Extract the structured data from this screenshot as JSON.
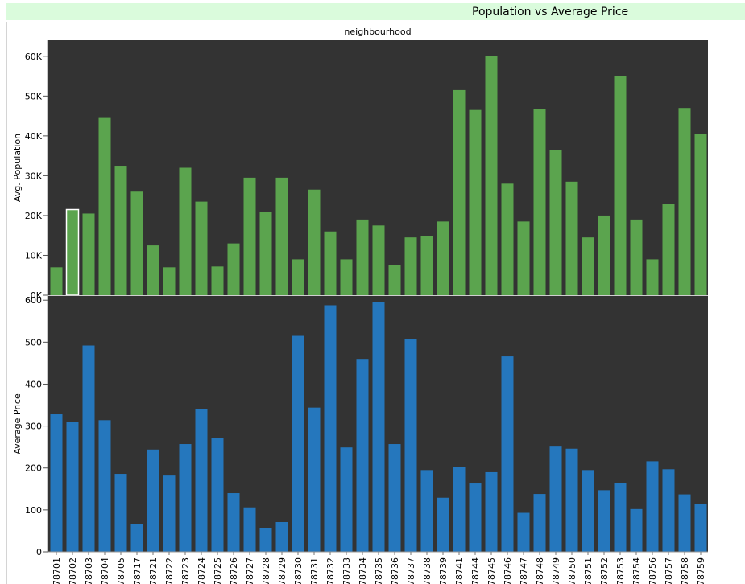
{
  "title": "Population vs Average Price",
  "column_header": "neighbourhood",
  "colors": {
    "title_bg": "#dafbdc",
    "plot_bg": "#333333",
    "population_bar": "#5ba44e",
    "price_bar": "#2577bd",
    "selected_outline": "#ffffff"
  },
  "chart_data": [
    {
      "type": "bar",
      "categories": [
        "78701",
        "78702",
        "78703",
        "78704",
        "78705",
        "78717",
        "78721",
        "78722",
        "78723",
        "78724",
        "78725",
        "78726",
        "78727",
        "78728",
        "78729",
        "78730",
        "78731",
        "78732",
        "78733",
        "78734",
        "78735",
        "78736",
        "78737",
        "78738",
        "78739",
        "78741",
        "78744",
        "78745",
        "78746",
        "78747",
        "78748",
        "78749",
        "78750",
        "78751",
        "78752",
        "78753",
        "78754",
        "78756",
        "78757",
        "78758",
        "78759"
      ],
      "values": [
        7000,
        21500,
        20500,
        44500,
        32500,
        26000,
        12500,
        7000,
        32000,
        23500,
        7200,
        13000,
        29500,
        21000,
        29500,
        9000,
        26500,
        16000,
        9000,
        19000,
        17500,
        7500,
        14500,
        14800,
        18500,
        51500,
        46500,
        60000,
        28000,
        18500,
        46800,
        36500,
        28500,
        14500,
        20000,
        55000,
        19000,
        9000,
        23000,
        47000,
        40500
      ],
      "ylabel": "Avg. Population",
      "ylim": [
        0,
        64000
      ],
      "yticks": [
        {
          "value": 0,
          "label": "0K"
        },
        {
          "value": 10000,
          "label": "10K"
        },
        {
          "value": 20000,
          "label": "20K"
        },
        {
          "value": 30000,
          "label": "30K"
        },
        {
          "value": 40000,
          "label": "40K"
        },
        {
          "value": 50000,
          "label": "50K"
        },
        {
          "value": 60000,
          "label": "60K"
        }
      ],
      "highlighted": "78702",
      "grid": false
    },
    {
      "type": "bar",
      "categories": [
        "78701",
        "78702",
        "78703",
        "78704",
        "78705",
        "78717",
        "78721",
        "78722",
        "78723",
        "78724",
        "78725",
        "78726",
        "78727",
        "78728",
        "78729",
        "78730",
        "78731",
        "78732",
        "78733",
        "78734",
        "78735",
        "78736",
        "78737",
        "78738",
        "78739",
        "78741",
        "78744",
        "78745",
        "78746",
        "78747",
        "78748",
        "78749",
        "78750",
        "78751",
        "78752",
        "78753",
        "78754",
        "78756",
        "78757",
        "78758",
        "78759"
      ],
      "values": [
        328,
        310,
        492,
        314,
        186,
        66,
        244,
        182,
        257,
        340,
        272,
        140,
        106,
        56,
        71,
        515,
        344,
        588,
        249,
        460,
        596,
        257,
        507,
        195,
        129,
        202,
        163,
        190,
        466,
        93,
        138,
        251,
        246,
        195,
        147,
        164,
        102,
        216,
        197,
        137,
        115
      ],
      "ylabel": "Average Price",
      "ylim": [
        0,
        610
      ],
      "yticks": [
        {
          "value": 0,
          "label": "0"
        },
        {
          "value": 100,
          "label": "100"
        },
        {
          "value": 200,
          "label": "200"
        },
        {
          "value": 300,
          "label": "300"
        },
        {
          "value": 400,
          "label": "400"
        },
        {
          "value": 500,
          "label": "500"
        },
        {
          "value": 600,
          "label": "600"
        }
      ],
      "grid": false
    }
  ]
}
